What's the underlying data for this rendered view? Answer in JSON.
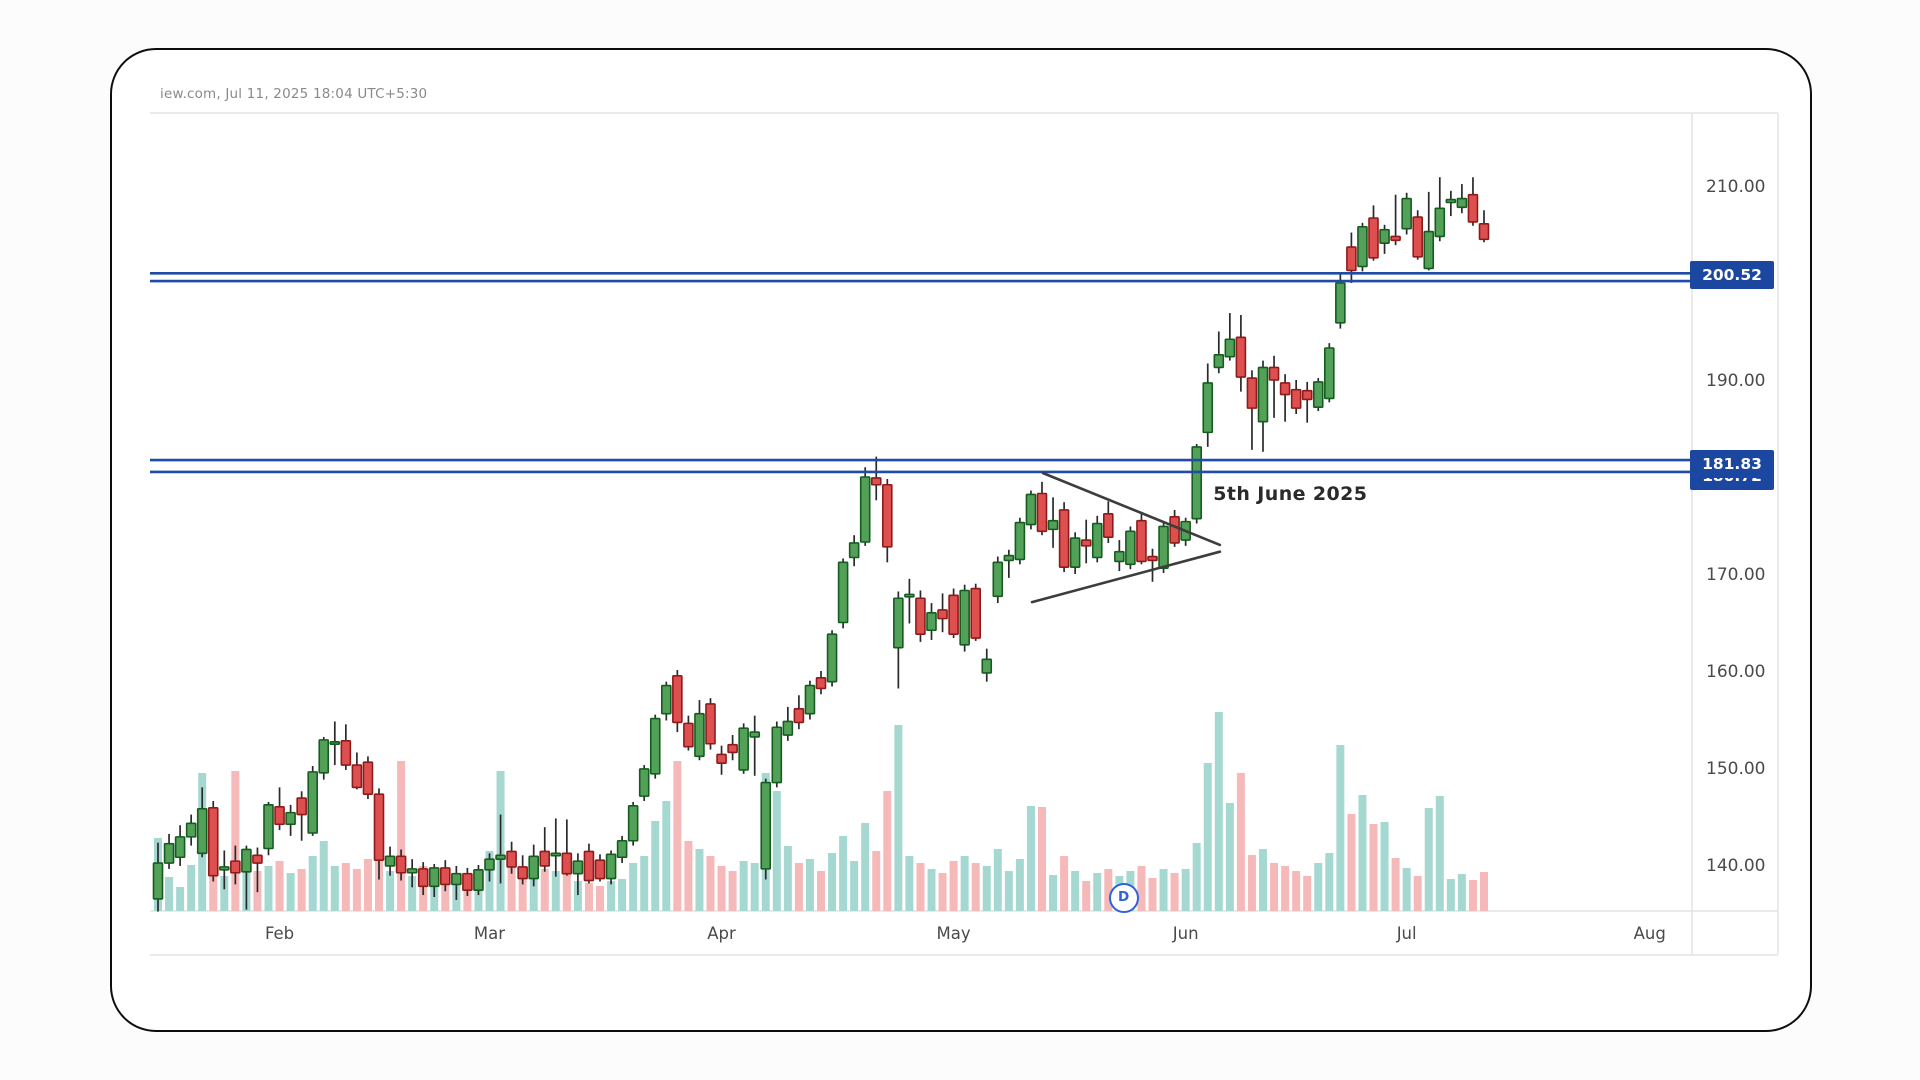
{
  "watermark": "iew.com, Jul 11, 2025 18:04 UTC+5:30",
  "annotation": {
    "text": "5th June 2025",
    "i": 95.5,
    "price": 178.2
  },
  "d_marker": {
    "label": "D",
    "i": 87.2
  },
  "levels": [
    {
      "label": "200.52",
      "line_prices": [
        201.0,
        200.2
      ]
    },
    {
      "label": "181.83",
      "back_label": "180.72",
      "line_prices": [
        181.75,
        180.52
      ]
    }
  ],
  "pennant": {
    "upper": {
      "from": {
        "i": 80.1,
        "price": 180.4
      },
      "to": {
        "i": 96.1,
        "price": 173.0
      }
    },
    "lower": {
      "from": {
        "i": 79.1,
        "price": 167.1
      },
      "to": {
        "i": 96.1,
        "price": 172.3
      }
    }
  },
  "colors": {
    "up": "#53a158",
    "up_border": "#155c20",
    "down": "#de5050",
    "down_border": "#8e1b1b",
    "wick": "#2a2a2a",
    "volume_up": "#a6d8d2",
    "volume_down": "#f5b9b9",
    "level_line": "#1e4ca6",
    "badge_bg": "#1b47a0",
    "pennant": "#3d3d3d",
    "marker_blue": "#2f63d8",
    "axis_text": "#4a4a4a",
    "separator": "#e4e4e4"
  },
  "chart_data": {
    "type": "candlestick",
    "title": "",
    "xlabel": "",
    "ylabel": "",
    "ohlc_format": [
      "open",
      "high",
      "low",
      "close",
      "volume_rel"
    ],
    "ylim": [
      135,
      217
    ],
    "grid": false,
    "price_ticks": [
      210,
      190,
      170,
      160,
      150,
      140
    ],
    "months": [
      {
        "label": "Feb",
        "index": 11
      },
      {
        "label": "Mar",
        "index": 30
      },
      {
        "label": "Apr",
        "index": 51
      },
      {
        "label": "May",
        "index": 72
      },
      {
        "label": "Jun",
        "index": 93
      },
      {
        "label": "Jul",
        "index": 113
      },
      {
        "label": "Aug",
        "index": 135
      }
    ],
    "candles": [
      [
        136.5,
        142.3,
        135.2,
        140.2,
        73
      ],
      [
        140.2,
        143.2,
        139.6,
        142.2,
        34
      ],
      [
        140.8,
        144.1,
        139.9,
        142.9,
        24
      ],
      [
        142.9,
        145.2,
        142.0,
        144.3,
        46
      ],
      [
        141.2,
        148.0,
        140.8,
        145.8,
        138
      ],
      [
        145.9,
        146.6,
        138.3,
        138.9,
        90
      ],
      [
        139.5,
        141.5,
        137.5,
        139.8,
        35
      ],
      [
        140.4,
        142.0,
        138.0,
        139.2,
        140
      ],
      [
        139.3,
        142.0,
        135.4,
        141.6,
        55
      ],
      [
        141.0,
        141.8,
        137.2,
        140.2,
        40
      ],
      [
        141.7,
        146.5,
        141.0,
        146.2,
        45
      ],
      [
        146.0,
        148.0,
        143.6,
        144.2,
        50
      ],
      [
        144.2,
        146.2,
        143.0,
        145.4,
        38
      ],
      [
        146.9,
        147.6,
        142.5,
        145.2,
        42
      ],
      [
        143.3,
        150.2,
        143.0,
        149.6,
        55
      ],
      [
        149.5,
        153.2,
        148.8,
        152.9,
        70
      ],
      [
        152.5,
        154.8,
        150.3,
        152.7,
        45
      ],
      [
        152.8,
        154.5,
        149.8,
        150.3,
        48
      ],
      [
        150.3,
        151.6,
        147.8,
        148.0,
        42
      ],
      [
        150.6,
        151.2,
        146.8,
        147.3,
        52
      ],
      [
        147.3,
        147.9,
        138.5,
        140.5,
        95
      ],
      [
        139.9,
        141.9,
        138.9,
        140.9,
        40
      ],
      [
        140.9,
        141.6,
        138.4,
        139.2,
        150
      ],
      [
        139.2,
        140.6,
        137.7,
        139.6,
        35
      ],
      [
        139.6,
        140.3,
        136.9,
        137.8,
        45
      ],
      [
        137.8,
        140.1,
        136.7,
        139.7,
        38
      ],
      [
        139.7,
        140.5,
        137.3,
        138.0,
        30
      ],
      [
        138.0,
        139.9,
        136.4,
        139.1,
        32
      ],
      [
        139.1,
        139.7,
        136.8,
        137.4,
        28
      ],
      [
        137.4,
        140.0,
        136.9,
        139.5,
        33
      ],
      [
        139.5,
        141.2,
        138.3,
        140.6,
        60
      ],
      [
        140.6,
        145.2,
        138.1,
        141.0,
        140
      ],
      [
        141.4,
        142.4,
        139.1,
        139.8,
        45
      ],
      [
        139.8,
        141.0,
        138.0,
        138.6,
        38
      ],
      [
        138.6,
        142.1,
        137.8,
        140.9,
        35
      ],
      [
        141.4,
        143.9,
        139.3,
        139.9,
        42
      ],
      [
        141.0,
        144.8,
        138.8,
        141.2,
        40
      ],
      [
        141.2,
        144.7,
        138.9,
        139.1,
        45
      ],
      [
        139.1,
        141.2,
        136.9,
        140.4,
        30
      ],
      [
        141.4,
        142.2,
        138.1,
        138.4,
        28
      ],
      [
        140.5,
        141.1,
        138.3,
        138.6,
        25
      ],
      [
        138.6,
        141.5,
        138.0,
        141.1,
        30
      ],
      [
        140.8,
        143.0,
        140.2,
        142.5,
        32
      ],
      [
        142.5,
        146.5,
        142.0,
        146.1,
        48
      ],
      [
        147.1,
        150.3,
        146.6,
        149.9,
        55
      ],
      [
        149.4,
        155.5,
        148.9,
        155.1,
        90
      ],
      [
        155.6,
        158.9,
        154.9,
        158.5,
        110
      ],
      [
        159.5,
        160.1,
        153.7,
        154.7,
        150
      ],
      [
        154.6,
        155.4,
        151.8,
        152.2,
        70
      ],
      [
        151.2,
        157.0,
        150.8,
        155.6,
        62
      ],
      [
        156.6,
        157.2,
        151.9,
        152.5,
        55
      ],
      [
        151.4,
        152.3,
        149.3,
        150.5,
        45
      ],
      [
        152.4,
        153.4,
        150.8,
        151.6,
        40
      ],
      [
        149.8,
        154.6,
        149.4,
        154.1,
        50
      ],
      [
        153.2,
        155.4,
        149.2,
        153.7,
        48
      ],
      [
        139.6,
        148.9,
        138.5,
        148.5,
        138
      ],
      [
        148.5,
        154.8,
        148.0,
        154.2,
        120
      ],
      [
        153.4,
        156.3,
        152.8,
        154.8,
        65
      ],
      [
        156.1,
        157.5,
        154.0,
        154.7,
        48
      ],
      [
        155.6,
        159.0,
        155.0,
        158.5,
        52
      ],
      [
        159.3,
        160.0,
        157.6,
        158.2,
        40
      ],
      [
        158.9,
        164.2,
        158.4,
        163.8,
        58
      ],
      [
        165.0,
        171.6,
        164.4,
        171.2,
        75
      ],
      [
        171.7,
        174.0,
        170.8,
        173.2,
        50
      ],
      [
        173.3,
        181.0,
        172.9,
        180.0,
        88
      ],
      [
        179.9,
        182.1,
        177.6,
        179.2,
        60
      ],
      [
        179.2,
        179.8,
        171.2,
        172.8,
        120
      ],
      [
        162.4,
        168.2,
        158.2,
        167.5,
        186
      ],
      [
        167.8,
        169.5,
        164.9,
        167.9,
        55
      ],
      [
        167.5,
        168.3,
        163.0,
        163.8,
        48
      ],
      [
        164.2,
        167.0,
        163.2,
        166.0,
        42
      ],
      [
        166.3,
        168.0,
        164.0,
        165.4,
        38
      ],
      [
        167.8,
        168.5,
        163.4,
        163.8,
        50
      ],
      [
        162.7,
        168.9,
        162.0,
        168.3,
        55
      ],
      [
        168.5,
        169.0,
        163.1,
        163.4,
        48
      ],
      [
        159.8,
        162.3,
        158.9,
        161.2,
        45
      ],
      [
        167.7,
        171.8,
        167.0,
        171.2,
        62
      ],
      [
        171.4,
        172.5,
        169.6,
        171.9,
        40
      ],
      [
        171.5,
        175.8,
        171.0,
        175.3,
        52
      ],
      [
        175.1,
        178.6,
        174.6,
        178.2,
        105
      ],
      [
        178.3,
        179.5,
        174.0,
        174.4,
        104
      ],
      [
        174.6,
        177.9,
        172.7,
        175.5,
        36
      ],
      [
        176.6,
        177.4,
        170.2,
        170.7,
        55
      ],
      [
        170.7,
        174.3,
        170.0,
        173.7,
        40
      ],
      [
        173.5,
        175.6,
        171.1,
        172.9,
        30
      ],
      [
        171.7,
        176.0,
        171.2,
        175.2,
        38
      ],
      [
        176.2,
        177.5,
        173.2,
        173.8,
        42
      ],
      [
        171.3,
        173.5,
        170.3,
        172.3,
        35
      ],
      [
        171.0,
        174.9,
        170.5,
        174.4,
        40
      ],
      [
        175.5,
        176.4,
        171.0,
        171.3,
        45
      ],
      [
        171.8,
        172.6,
        169.2,
        171.4,
        33
      ],
      [
        170.6,
        175.3,
        170.1,
        174.9,
        42
      ],
      [
        175.9,
        176.6,
        172.8,
        173.2,
        38
      ],
      [
        173.5,
        175.8,
        172.9,
        175.4,
        42
      ],
      [
        175.7,
        183.4,
        175.2,
        183.1,
        68
      ],
      [
        184.6,
        191.7,
        183.1,
        189.7,
        148
      ],
      [
        191.3,
        195.0,
        190.7,
        192.6,
        199
      ],
      [
        192.4,
        196.9,
        192.0,
        194.2,
        108
      ],
      [
        194.4,
        196.7,
        188.8,
        190.3,
        138
      ],
      [
        190.2,
        191.0,
        182.8,
        187.1,
        56
      ],
      [
        185.7,
        192.0,
        182.6,
        191.3,
        62
      ],
      [
        191.3,
        192.5,
        186.1,
        190.0,
        48
      ],
      [
        189.7,
        190.6,
        185.7,
        188.5,
        45
      ],
      [
        189.0,
        190.0,
        186.5,
        187.1,
        40
      ],
      [
        188.9,
        189.8,
        185.6,
        188.0,
        35
      ],
      [
        187.2,
        190.2,
        186.8,
        189.8,
        48
      ],
      [
        188.1,
        193.8,
        187.7,
        193.3,
        58
      ],
      [
        195.9,
        201.1,
        195.3,
        200.0,
        166
      ],
      [
        203.7,
        205.2,
        200.0,
        201.3,
        97
      ],
      [
        201.7,
        206.2,
        201.2,
        205.8,
        116
      ],
      [
        206.7,
        208.0,
        202.3,
        202.6,
        87
      ],
      [
        204.1,
        206.0,
        203.0,
        205.5,
        89
      ],
      [
        204.8,
        209.1,
        203.9,
        204.4,
        53
      ],
      [
        205.6,
        209.3,
        205.0,
        208.7,
        43
      ],
      [
        206.8,
        207.5,
        202.4,
        202.7,
        35
      ],
      [
        201.5,
        209.4,
        201.3,
        205.3,
        103
      ],
      [
        204.8,
        210.9,
        204.3,
        207.7,
        115
      ],
      [
        208.3,
        209.5,
        206.9,
        208.6,
        32
      ],
      [
        207.8,
        210.2,
        207.2,
        208.7,
        37
      ],
      [
        209.1,
        210.9,
        205.9,
        206.3,
        31
      ],
      [
        206.1,
        207.5,
        204.2,
        204.5,
        39
      ]
    ]
  }
}
